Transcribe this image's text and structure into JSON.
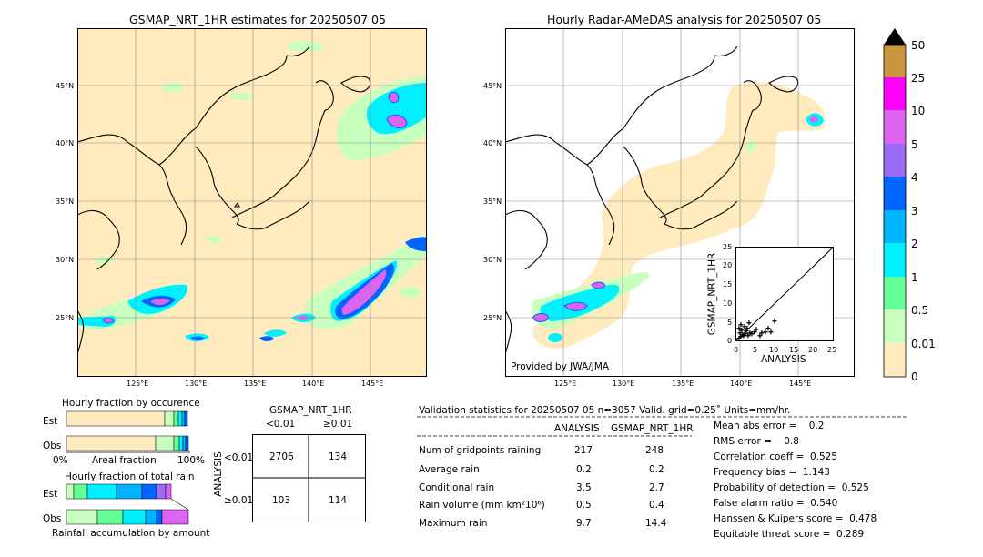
{
  "maps": {
    "left": {
      "title": "GSMAP_NRT_1HR estimates for 20250507 05",
      "lat_labels": [
        "45°N",
        "40°N",
        "35°N",
        "30°N",
        "25°N"
      ],
      "lon_labels": [
        "125°E",
        "130°E",
        "135°E",
        "140°E",
        "145°E"
      ]
    },
    "right": {
      "title": "Hourly Radar-AMeDAS analysis for 20250507 05",
      "lat_labels": [
        "45°N",
        "40°N",
        "35°N",
        "30°N",
        "25°N"
      ],
      "lon_labels": [
        "125°E",
        "130°E",
        "135°E",
        "140°E",
        "145°E"
      ],
      "provided_by": "Provided by JWA/JMA"
    }
  },
  "inset_scatter": {
    "ylabel": "GSMAP_NRT_1HR",
    "xlabel": "ANALYSIS",
    "ticks": [
      "0",
      "5",
      "10",
      "15",
      "20",
      "25"
    ]
  },
  "colorbar": {
    "labels": [
      "50",
      "25",
      "10",
      "5",
      "4",
      "3",
      "2",
      "1",
      "0.5",
      "0.01",
      "0"
    ],
    "colors": [
      "#c8963c",
      "#ff00ff",
      "#dc64f0",
      "#9b6cf5",
      "#0064ff",
      "#00b4ff",
      "#00f0ff",
      "#64ff96",
      "#c8ffbe",
      "#ffebbe"
    ]
  },
  "fraction_occurrence": {
    "title": "Hourly fraction by occurence",
    "rows": [
      "Est",
      "Obs"
    ],
    "xlabel_left": "0%",
    "xlabel_mid": "Areal fraction",
    "xlabel_right": "100%"
  },
  "fraction_total": {
    "title": "Hourly fraction of total rain",
    "rows": [
      "Est",
      "Obs"
    ],
    "xlabel": "Rainfall accumulation by amount"
  },
  "contingency": {
    "title": "GSMAP_NRT_1HR",
    "col_lt": "<0.01",
    "col_ge": "≥0.01",
    "row_axis": "ANALYSIS",
    "row_lt": "<0.01",
    "row_ge": "≥0.01",
    "cells": [
      "2706",
      "134",
      "103",
      "114"
    ]
  },
  "validation": {
    "header": "Validation statistics for 20250507 05  n=3057 Valid. grid=0.25˚ Units=mm/hr.",
    "col1": "ANALYSIS",
    "col2": "GSMAP_NRT_1HR",
    "rows": [
      {
        "label": "Num of gridpoints raining",
        "a": "217",
        "g": "248"
      },
      {
        "label": "Average rain",
        "a": "0.2",
        "g": "0.2"
      },
      {
        "label": "Conditional rain",
        "a": "3.5",
        "g": "2.7"
      },
      {
        "label": "Rain volume (mm km²10⁶)",
        "a": "0.5",
        "g": "0.4"
      },
      {
        "label": "Maximum rain",
        "a": "9.7",
        "g": "14.4"
      }
    ],
    "scores": [
      "Mean abs error =    0.2",
      "RMS error =    0.8",
      "Correlation coeff =  0.525",
      "Frequency bias =  1.143",
      "Probability of detection =  0.525",
      "False alarm ratio =  0.540",
      "Hanssen & Kuipers score =  0.478",
      "Equitable threat score =  0.289"
    ]
  },
  "chart_data": {
    "type": "table",
    "contingency_table": {
      "analysis_lt_0.01": {
        "gsmap_lt_0.01": 2706,
        "gsmap_ge_0.01": 134
      },
      "analysis_ge_0.01": {
        "gsmap_lt_0.01": 103,
        "gsmap_ge_0.01": 114
      }
    },
    "statistics": {
      "num_gridpoints_raining": {
        "analysis": 217,
        "gsmap": 248
      },
      "average_rain": {
        "analysis": 0.2,
        "gsmap": 0.2
      },
      "conditional_rain": {
        "analysis": 3.5,
        "gsmap": 2.7
      },
      "rain_volume": {
        "analysis": 0.5,
        "gsmap": 0.4
      },
      "maximum_rain": {
        "analysis": 9.7,
        "gsmap": 14.4
      },
      "mean_abs_error": 0.2,
      "rms_error": 0.8,
      "correlation_coeff": 0.525,
      "frequency_bias": 1.143,
      "probability_of_detection": 0.525,
      "false_alarm_ratio": 0.54,
      "hanssen_kuipers_score": 0.478,
      "equitable_threat_score": 0.289
    }
  }
}
